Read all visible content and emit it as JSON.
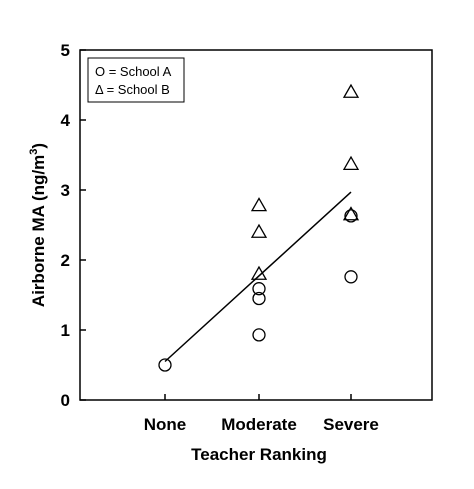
{
  "chart_data": {
    "type": "scatter",
    "categories": [
      "None",
      "Moderate",
      "Severe"
    ],
    "xlabel": "Teacher Ranking",
    "ylabel": "Airborne MA (ng/m",
    "ylabel_sup": "3",
    "ylabel_close": ")",
    "ylim": [
      0,
      5
    ],
    "yticks": [
      "0",
      "1",
      "2",
      "3",
      "4",
      "5"
    ],
    "grid": false,
    "legend_position": "top-left",
    "legend": [
      {
        "marker": "circle",
        "label": "O = School A"
      },
      {
        "marker": "triangle",
        "label": "Δ = School B"
      }
    ],
    "series": [
      {
        "name": "School A",
        "marker": "circle",
        "points": [
          {
            "x": "None",
            "y": 0.5
          },
          {
            "x": "Moderate",
            "y": 1.59
          },
          {
            "x": "Moderate",
            "y": 1.45
          },
          {
            "x": "Moderate",
            "y": 0.93
          },
          {
            "x": "Severe",
            "y": 2.63
          },
          {
            "x": "Severe",
            "y": 1.76
          }
        ]
      },
      {
        "name": "School B",
        "marker": "triangle",
        "points": [
          {
            "x": "Moderate",
            "y": 2.78
          },
          {
            "x": "Moderate",
            "y": 2.4
          },
          {
            "x": "Moderate",
            "y": 1.8
          },
          {
            "x": "Severe",
            "y": 4.4
          },
          {
            "x": "Severe",
            "y": 3.37
          },
          {
            "x": "Severe",
            "y": 2.65
          }
        ]
      }
    ],
    "trendline": {
      "from": {
        "x": "None",
        "y": 0.55
      },
      "to": {
        "x": "Severe",
        "y": 2.97
      }
    },
    "colors": {
      "marks": "#000000",
      "background": "#ffffff"
    }
  }
}
